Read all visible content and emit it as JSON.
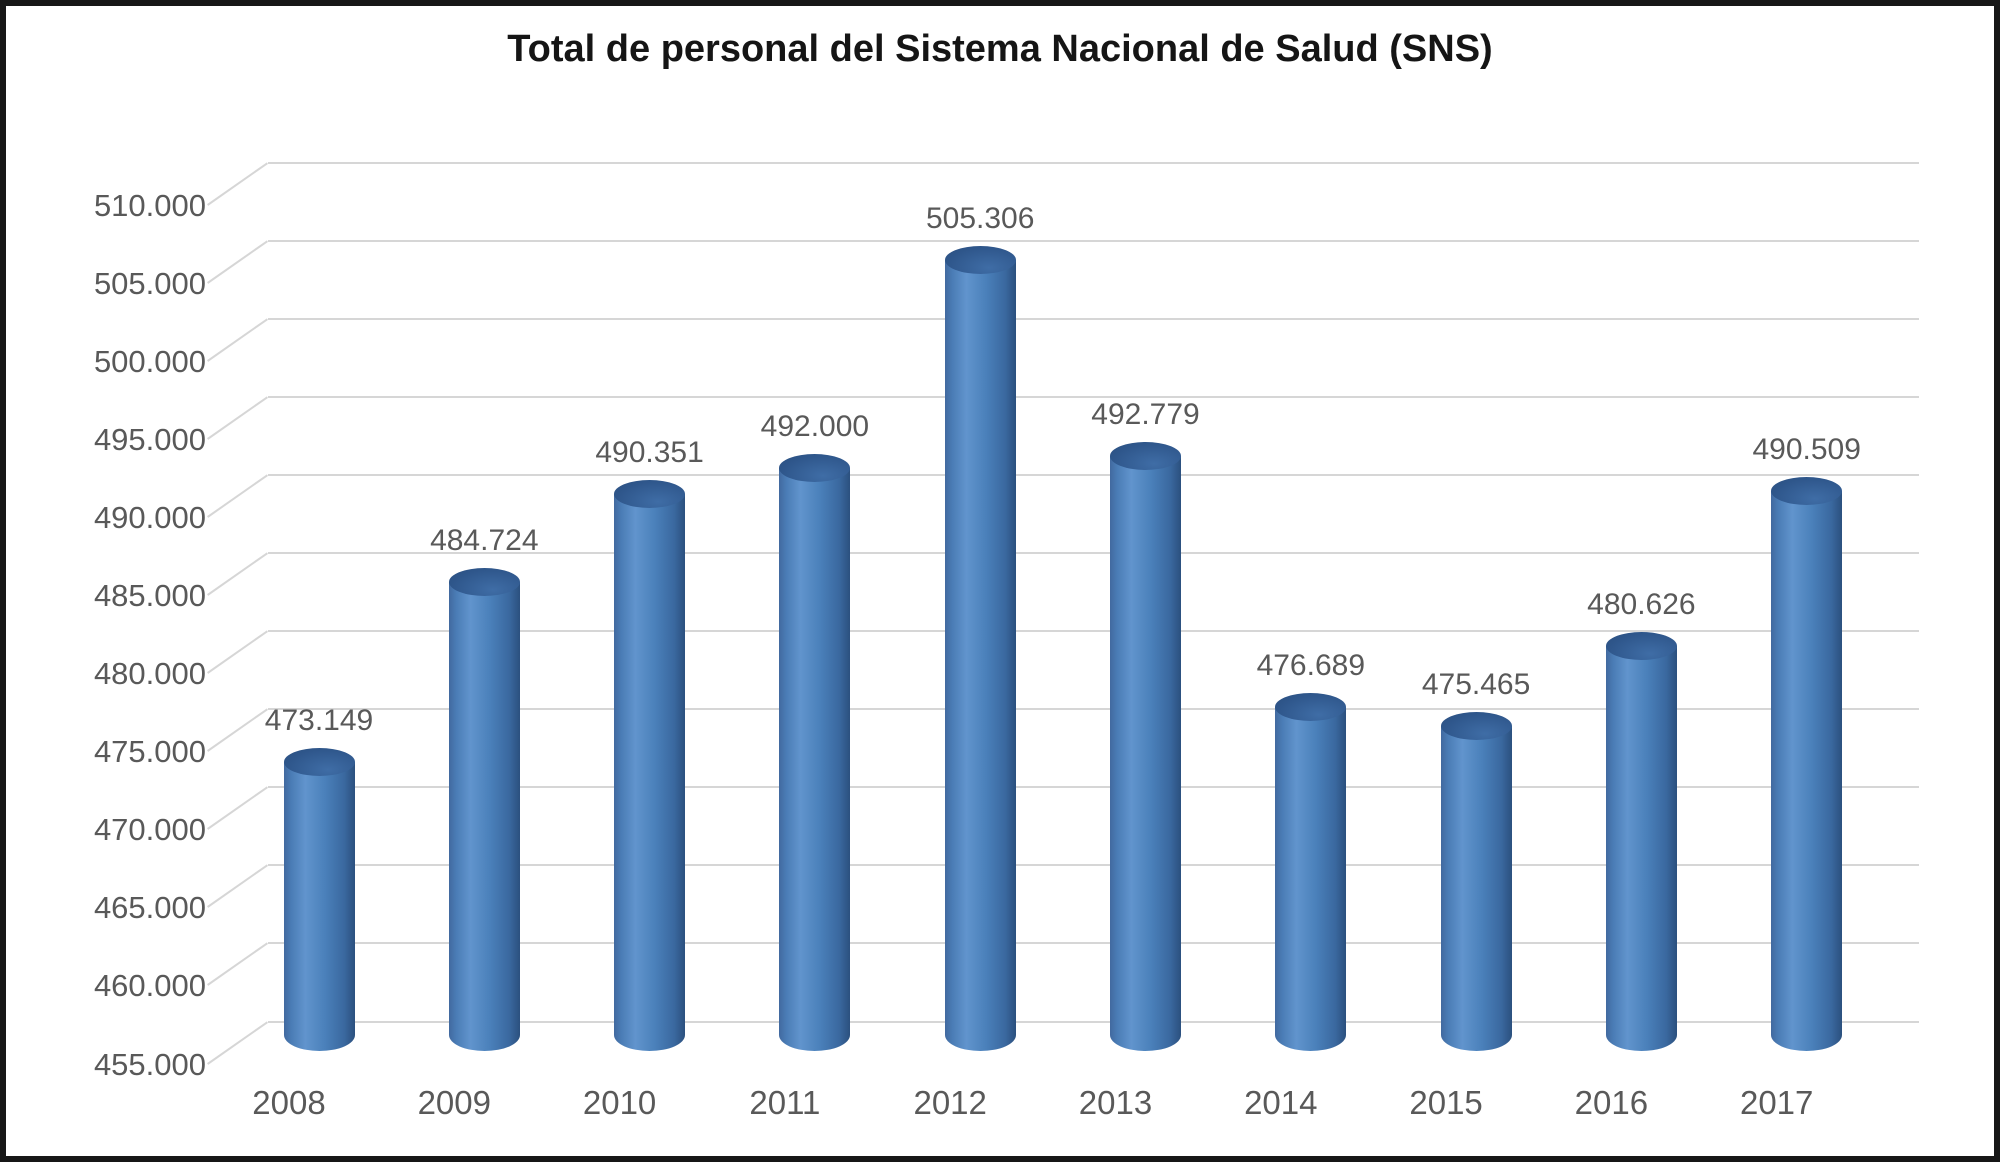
{
  "chart_data": {
    "type": "bar",
    "variant": "3d-cylinder",
    "title": "Total de personal del Sistema Nacional de Salud (SNS)",
    "categories": [
      "2008",
      "2009",
      "2010",
      "2011",
      "2012",
      "2013",
      "2014",
      "2015",
      "2016",
      "2017"
    ],
    "values": [
      473149,
      484724,
      490351,
      492000,
      505306,
      492779,
      476689,
      475465,
      480626,
      490509
    ],
    "data_labels": [
      "473.149",
      "484.724",
      "490.351",
      "492.000",
      "505.306",
      "492.779",
      "476.689",
      "475.465",
      "480.626",
      "490.509"
    ],
    "xlabel": "",
    "ylabel": "",
    "ylim": [
      455000,
      510000
    ],
    "ytick_step": 5000,
    "yticks": [
      "455.000",
      "460.000",
      "465.000",
      "470.000",
      "475.000",
      "480.000",
      "485.000",
      "490.000",
      "495.000",
      "500.000",
      "505.000",
      "510.000"
    ],
    "grid": true,
    "legend_position": "none",
    "colors": {
      "bar_highlight": "#6194cd",
      "bar_mid": "#4a7cb5",
      "bar_mid2": "#4a80ba",
      "bar_dark": "#3a689f",
      "bar_edge_left": "#41699f",
      "bar_edge_right": "#2b507e",
      "cap_fill": "#2f578c",
      "cap_highlight": "#3f6da6",
      "cap_edge": "#2a4e7e",
      "gridline": "#d6d6d6",
      "label_text": "#595959",
      "title_text": "#151515"
    }
  }
}
